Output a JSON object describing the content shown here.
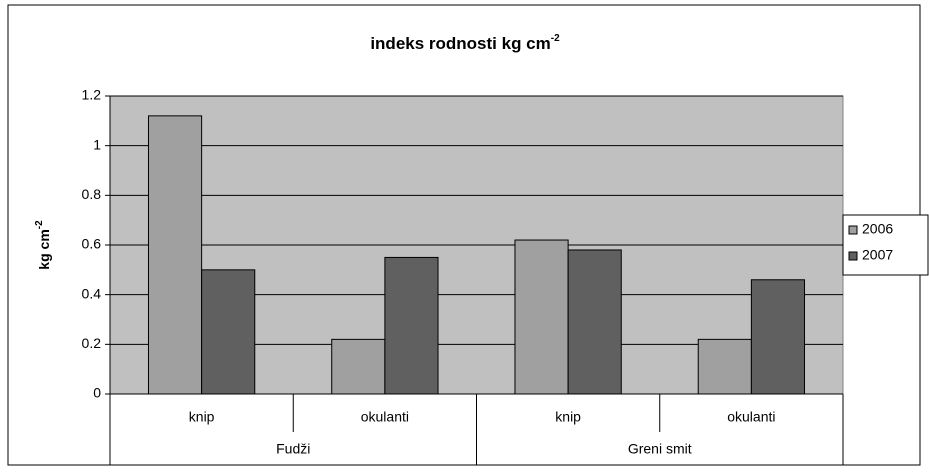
{
  "chart_data": {
    "type": "bar",
    "title": "indeks rodnosti kg cm",
    "title_superscript": "-2",
    "y_label": "kg cm",
    "y_label_superscript": "-2",
    "categories": [
      "knip",
      "okulanti",
      "knip",
      "okulanti"
    ],
    "category_groups": [
      {
        "name": "Fudži",
        "span": 2
      },
      {
        "name": "Greni smit",
        "span": 2
      }
    ],
    "series": [
      {
        "name": "2006",
        "color": "#a0a0a0",
        "values": [
          1.12,
          0.22,
          0.62,
          0.22
        ]
      },
      {
        "name": "2007",
        "color": "#606060",
        "values": [
          0.5,
          0.55,
          0.58,
          0.46
        ]
      }
    ],
    "ylim": [
      0,
      1.2
    ],
    "yticks": [
      0,
      0.2,
      0.4,
      0.6,
      0.8,
      1,
      1.2
    ],
    "grid": true,
    "plot_background": "#c0c0c0",
    "legend": "right"
  }
}
